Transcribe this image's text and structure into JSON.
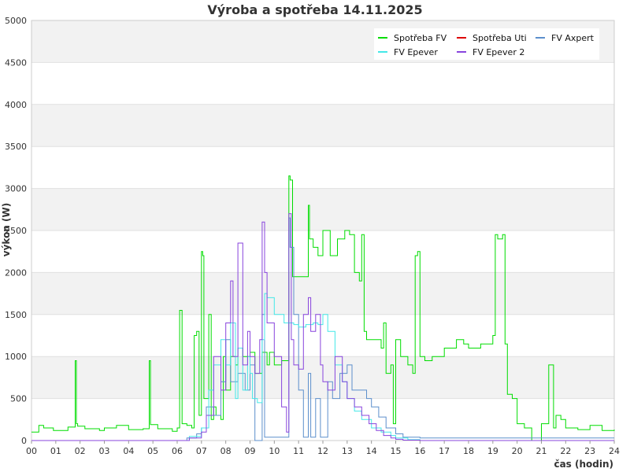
{
  "chart_data": {
    "type": "line",
    "title": "Výroba a spotřeba 14.11.2025",
    "xlabel": "čas (hodin)",
    "ylabel": "výkon (W)",
    "xlim": [
      0,
      24
    ],
    "ylim": [
      0,
      5000
    ],
    "x_ticks": [
      "00",
      "01",
      "02",
      "03",
      "04",
      "05",
      "06",
      "07",
      "08",
      "09",
      "10",
      "11",
      "12",
      "13",
      "14",
      "15",
      "16",
      "17",
      "18",
      "19",
      "20",
      "21",
      "22",
      "23",
      "24"
    ],
    "y_ticks": [
      0,
      500,
      1000,
      1500,
      2000,
      2500,
      3000,
      3500,
      4000,
      4500,
      5000
    ],
    "grid": "horizontal alternating bands",
    "legend_position": "top-right",
    "series": [
      {
        "name": "Spotřeba FV",
        "color": "#00dd00",
        "x": [
          0,
          0.3,
          0.5,
          0.9,
          1.5,
          1.8,
          1.85,
          1.9,
          2.2,
          2.8,
          3.0,
          3.5,
          4.0,
          4.6,
          4.85,
          4.9,
          5.2,
          5.8,
          6.0,
          6.1,
          6.2,
          6.4,
          6.6,
          6.7,
          6.8,
          6.9,
          7.0,
          7.05,
          7.1,
          7.3,
          7.4,
          7.5,
          7.6,
          7.8,
          7.9,
          8.0,
          8.2,
          8.4,
          8.5,
          8.7,
          9.0,
          9.2,
          9.5,
          9.7,
          9.8,
          10.0,
          10.3,
          10.6,
          10.65,
          10.75,
          10.8,
          11.2,
          11.4,
          11.45,
          11.6,
          11.8,
          12.0,
          12.3,
          12.6,
          12.9,
          13.1,
          13.3,
          13.5,
          13.6,
          13.7,
          13.8,
          14.0,
          14.4,
          14.5,
          14.6,
          14.8,
          14.9,
          15.0,
          15.2,
          15.5,
          15.7,
          15.8,
          15.9,
          16.0,
          16.2,
          16.5,
          17.0,
          17.5,
          17.8,
          18.0,
          18.5,
          19.0,
          19.1,
          19.2,
          19.4,
          19.5,
          19.6,
          19.8,
          20.0,
          20.3,
          20.6,
          21.0,
          21.3,
          21.5,
          21.6,
          21.8,
          22.0,
          22.5,
          23.0,
          23.5,
          24.0
        ],
        "y": [
          100,
          180,
          150,
          120,
          160,
          950,
          200,
          170,
          140,
          120,
          150,
          180,
          130,
          140,
          950,
          190,
          140,
          110,
          150,
          1550,
          200,
          180,
          150,
          1250,
          1300,
          300,
          2250,
          2200,
          500,
          1500,
          250,
          400,
          300,
          250,
          1000,
          600,
          1000,
          900,
          1100,
          1000,
          1050,
          800,
          1050,
          900,
          1050,
          900,
          950,
          3150,
          3100,
          1950,
          1950,
          1950,
          2800,
          2400,
          2300,
          2200,
          2500,
          2200,
          2400,
          2500,
          2450,
          2000,
          1900,
          2450,
          1300,
          1200,
          1200,
          1100,
          1400,
          800,
          900,
          200,
          1200,
          1000,
          900,
          800,
          2200,
          2250,
          1000,
          950,
          1000,
          1100,
          1200,
          1150,
          1100,
          1150,
          1250,
          2450,
          2400,
          2450,
          1150,
          550,
          500,
          200,
          150,
          0,
          200,
          900,
          150,
          300,
          250,
          150,
          130,
          180,
          120,
          130
        ]
      },
      {
        "name": "Spotřeba Uti",
        "color": "#dd0000",
        "x": [],
        "y": []
      },
      {
        "name": "FV Axpert",
        "color": "#5c8fcc",
        "x": [
          0,
          6.0,
          6.4,
          6.8,
          7.0,
          7.2,
          7.5,
          7.8,
          8.0,
          8.2,
          8.5,
          8.8,
          9.0,
          9.2,
          9.5,
          9.6,
          9.7,
          10.0,
          10.4,
          10.6,
          10.65,
          10.8,
          11.0,
          11.2,
          11.4,
          11.5,
          11.7,
          11.9,
          12.0,
          12.2,
          12.4,
          12.7,
          13.0,
          13.2,
          13.5,
          13.8,
          14.0,
          14.3,
          14.6,
          15.0,
          15.3,
          16.0,
          18.0,
          20.0,
          20.3,
          24.0
        ],
        "y": [
          0,
          0,
          30,
          80,
          150,
          400,
          300,
          700,
          1200,
          700,
          800,
          600,
          900,
          0,
          1500,
          40,
          40,
          40,
          40,
          2650,
          2300,
          1500,
          600,
          40,
          800,
          40,
          500,
          40,
          40,
          700,
          500,
          800,
          900,
          600,
          600,
          500,
          400,
          280,
          150,
          80,
          40,
          30,
          30,
          30,
          30,
          30
        ]
      },
      {
        "name": "FV Epever",
        "color": "#44e8e8",
        "x": [
          0,
          6.0,
          6.5,
          7.0,
          7.3,
          7.5,
          7.8,
          8.0,
          8.2,
          8.4,
          8.5,
          8.7,
          8.9,
          9.0,
          9.1,
          9.3,
          9.5,
          9.6,
          9.7,
          10.0,
          10.4,
          10.8,
          11.0,
          11.3,
          11.6,
          11.8,
          12.0,
          12.2,
          12.5,
          12.8,
          13.0,
          13.3,
          13.6,
          14.0,
          14.4,
          14.8,
          15.0,
          15.5,
          16.0,
          24.0
        ],
        "y": [
          0,
          0,
          50,
          150,
          600,
          900,
          1200,
          900,
          1400,
          500,
          1100,
          600,
          1000,
          800,
          500,
          450,
          1200,
          1750,
          1700,
          1500,
          1400,
          1380,
          1350,
          1380,
          1400,
          1380,
          1500,
          1300,
          900,
          700,
          500,
          350,
          250,
          150,
          100,
          60,
          30,
          10,
          0,
          0
        ]
      },
      {
        "name": "FV Epever 2",
        "color": "#8844dd",
        "x": [
          0,
          6.0,
          6.5,
          7.0,
          7.2,
          7.5,
          7.8,
          8.0,
          8.2,
          8.3,
          8.5,
          8.7,
          8.9,
          9.0,
          9.2,
          9.4,
          9.5,
          9.6,
          9.7,
          10.0,
          10.3,
          10.5,
          10.6,
          10.7,
          10.8,
          11.0,
          11.2,
          11.4,
          11.5,
          11.7,
          11.9,
          12.0,
          12.2,
          12.5,
          12.8,
          13.0,
          13.3,
          13.6,
          13.9,
          14.2,
          14.5,
          14.8,
          15.0,
          15.3,
          16.0,
          24.0
        ],
        "y": [
          0,
          0,
          30,
          100,
          300,
          1000,
          600,
          1400,
          1900,
          1000,
          2350,
          900,
          1300,
          1000,
          800,
          1200,
          2600,
          2000,
          1400,
          1000,
          400,
          100,
          2700,
          1200,
          900,
          850,
          1500,
          1700,
          1300,
          1500,
          900,
          700,
          600,
          1000,
          700,
          500,
          400,
          300,
          200,
          120,
          60,
          30,
          15,
          5,
          0,
          0
        ]
      }
    ]
  }
}
